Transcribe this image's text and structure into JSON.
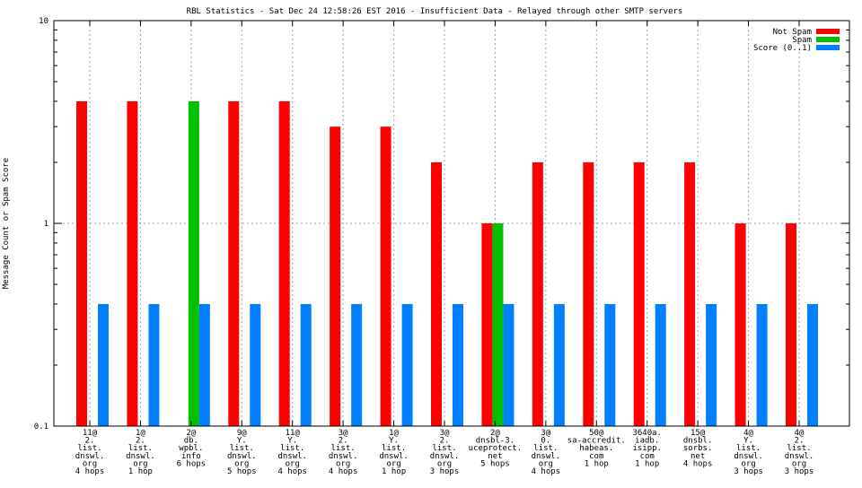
{
  "chart_data": {
    "type": "bar",
    "title": "RBL Statistics - Sat Dec 24 12:58:26 EST 2016 - Insufficient Data - Relayed through other SMTP servers",
    "xlabel": "",
    "ylabel": "Message Count or Spam Score",
    "yscale": "log",
    "ylim": [
      0.1,
      10
    ],
    "yticks": [
      "0.1",
      "1",
      "10"
    ],
    "grid": true,
    "legend_position": "top-right",
    "categories": [
      [
        "11@",
        "2.",
        "list.",
        "dnswl.",
        "org",
        "4 hops"
      ],
      [
        "1@",
        "2.",
        "list.",
        "dnswl.",
        "org",
        "1 hop"
      ],
      [
        "2@",
        "db.",
        "wpbl.",
        "info",
        "6 hops"
      ],
      [
        "9@",
        "Y.",
        "list.",
        "dnswl.",
        "org",
        "5 hops"
      ],
      [
        "11@",
        "Y.",
        "list.",
        "dnswl.",
        "org",
        "4 hops"
      ],
      [
        "3@",
        "2.",
        "list.",
        "dnswl.",
        "org",
        "4 hops"
      ],
      [
        "1@",
        "Y.",
        "list.",
        "dnswl.",
        "org",
        "1 hop"
      ],
      [
        "3@",
        "2.",
        "list.",
        "dnswl.",
        "org",
        "3 hops"
      ],
      [
        "2@",
        "dnsbl-3.",
        "uceprotect.",
        "net",
        "5 hops"
      ],
      [
        "3@",
        "0.",
        "list.",
        "dnswl.",
        "org",
        "4 hops"
      ],
      [
        "50@",
        "sa-accredit.",
        "habeas.",
        "com",
        "1 hop"
      ],
      [
        "3640a.",
        "iadb.",
        "isipp.",
        "com",
        "1 hop"
      ],
      [
        "15@",
        "dnsbl.",
        "sorbs.",
        "net",
        "4 hops"
      ],
      [
        "4@",
        "Y.",
        "list.",
        "dnswl.",
        "org",
        "3 hops"
      ],
      [
        "4@",
        "2.",
        "list.",
        "dnswl.",
        "org",
        "3 hops"
      ]
    ],
    "series": [
      {
        "name": "Not Spam",
        "color": "#ff0000",
        "values": [
          4,
          4,
          0,
          4,
          4,
          3,
          3,
          2,
          1,
          2,
          2,
          2,
          2,
          1,
          1
        ]
      },
      {
        "name": "Spam",
        "color": "#00c000",
        "values": [
          0,
          0,
          4,
          0,
          0,
          0,
          0,
          0,
          1,
          0,
          0,
          0,
          0,
          0,
          0
        ]
      },
      {
        "name": "Score (0..1)",
        "color": "#0080ff",
        "values": [
          0.4,
          0.4,
          0.4,
          0.4,
          0.4,
          0.4,
          0.4,
          0.4,
          0.4,
          0.4,
          0.4,
          0.4,
          0.4,
          0.4,
          0.4
        ]
      }
    ]
  }
}
